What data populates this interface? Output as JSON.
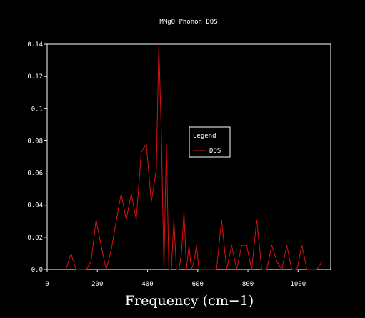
{
  "colors": {
    "background": "#000000",
    "axes": "#ffffff",
    "text": "#ffffff",
    "series": "#dd1111"
  },
  "chart_data": {
    "type": "line",
    "title": "MMgO Phonon DOS",
    "xlabel": "Frequency (cm−1)",
    "ylabel": "",
    "xlim": [
      0,
      1130
    ],
    "ylim": [
      0,
      0.14
    ],
    "x_ticks": [
      "0",
      "200",
      "400",
      "600",
      "800",
      "1000"
    ],
    "y_ticks": [
      "0.0",
      "0.02",
      "0.04",
      "0.06",
      "0.08",
      "0.1",
      "0.12",
      "0.14"
    ],
    "legend": {
      "title": "Legend",
      "placement": "center-right"
    },
    "series": [
      {
        "name": "DOS",
        "x": [
          75,
          95,
          115,
          135,
          155,
          175,
          195,
          215,
          235,
          255,
          275,
          295,
          315,
          335,
          355,
          375,
          395,
          415,
          435,
          445,
          455,
          465,
          475,
          485,
          495,
          505,
          515,
          525,
          535,
          545,
          555,
          565,
          575,
          585,
          595,
          605,
          615,
          625,
          635,
          645,
          655,
          665,
          675,
          695,
          715,
          735,
          755,
          775,
          795,
          815,
          835,
          855,
          875,
          895,
          915,
          935,
          955,
          975,
          995,
          1015,
          1035,
          1055,
          1075,
          1095
        ],
        "y": [
          0.0,
          0.01,
          0.0,
          0.0,
          0.0,
          0.005,
          0.031,
          0.015,
          0.0,
          0.012,
          0.03,
          0.047,
          0.031,
          0.047,
          0.031,
          0.073,
          0.078,
          0.042,
          0.062,
          0.14,
          0.083,
          0.0,
          0.078,
          0.0,
          0.0,
          0.031,
          0.0,
          0.0,
          0.01,
          0.036,
          0.0,
          0.015,
          0.0,
          0.005,
          0.015,
          0.0,
          0.0,
          0.0,
          0.0,
          0.0,
          0.0,
          0.0,
          0.0,
          0.031,
          0.0,
          0.015,
          0.0,
          0.015,
          0.015,
          0.0,
          0.031,
          0.0,
          0.0,
          0.015,
          0.005,
          0.0,
          0.015,
          0.0,
          0.0,
          0.015,
          0.0,
          0.0,
          0.0,
          0.005
        ]
      }
    ]
  }
}
